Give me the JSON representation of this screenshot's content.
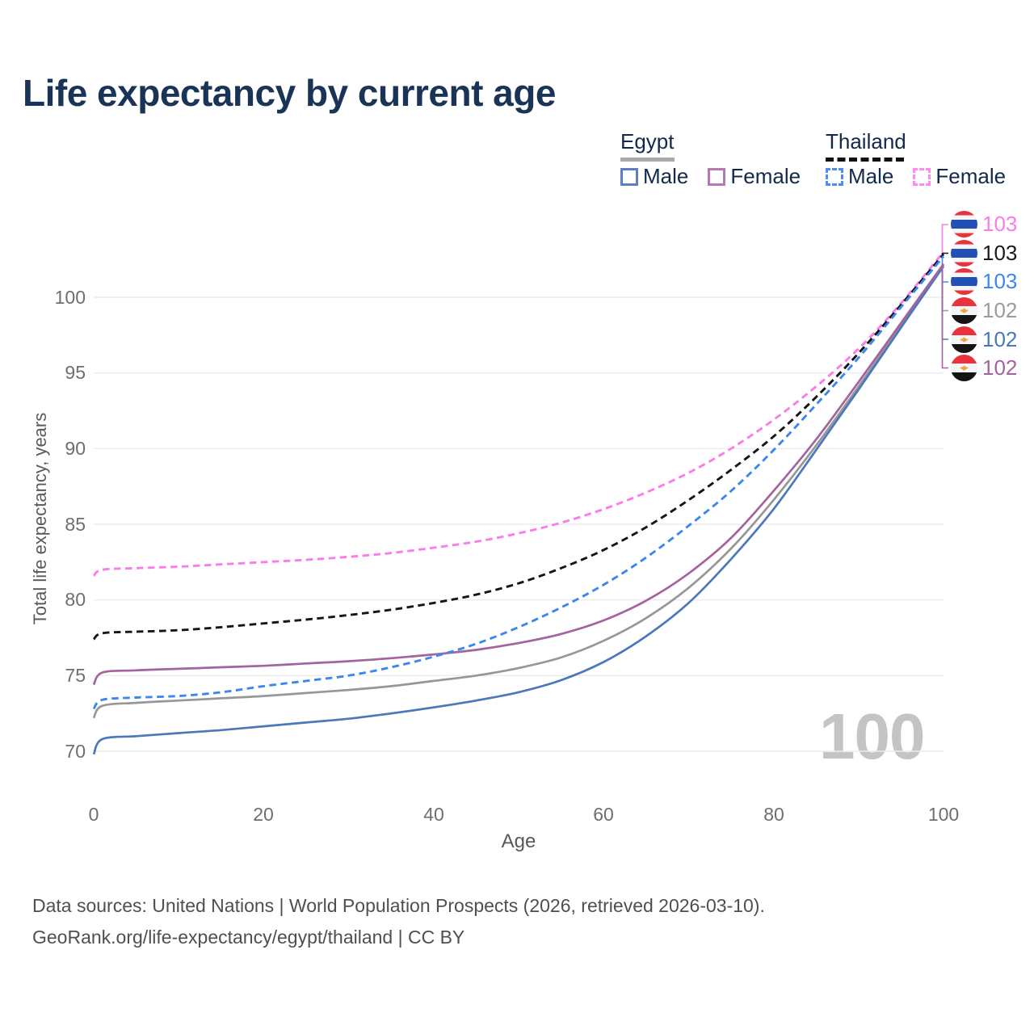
{
  "title": "Life expectancy by current age",
  "legend": {
    "egypt": {
      "label": "Egypt",
      "male": "Male",
      "female": "Female"
    },
    "thailand": {
      "label": "Thailand",
      "male": "Male",
      "female": "Female"
    }
  },
  "axes": {
    "y": {
      "label": "Total life expectancy, years",
      "ticks": [
        "100",
        "95",
        "90",
        "85",
        "80",
        "75",
        "70"
      ],
      "tick_values": [
        100,
        95,
        90,
        85,
        80,
        75,
        70
      ]
    },
    "x": {
      "label": "Age",
      "ticks": [
        "0",
        "20",
        "40",
        "60",
        "80",
        "100"
      ],
      "tick_values": [
        0,
        20,
        40,
        60,
        80,
        100
      ]
    }
  },
  "watermark": "100",
  "end_labels": [
    {
      "value": "103",
      "flag": "thailand",
      "color": "#fb7be9"
    },
    {
      "value": "103",
      "flag": "thailand",
      "color": "#1a1a1a"
    },
    {
      "value": "103",
      "flag": "thailand",
      "color": "#3b87f0"
    },
    {
      "value": "102",
      "flag": "egypt",
      "color": "#9b9b9b"
    },
    {
      "value": "102",
      "flag": "egypt",
      "color": "#4a78ba"
    },
    {
      "value": "102",
      "flag": "egypt",
      "color": "#a4639f"
    }
  ],
  "footer": {
    "line1": "Data sources: United Nations | World Population Prospects (2026, retrieved 2026-03-10).",
    "line2": "GeoRank.org/life-expectancy/egypt/thailand | CC BY"
  },
  "chart_data": {
    "type": "line",
    "title": "Life expectancy by current age",
    "xlabel": "Age",
    "ylabel": "Total life expectancy, years",
    "xlim": [
      0,
      100
    ],
    "ylim": [
      68.5,
      106
    ],
    "grid": "horizontal-only",
    "legend_position": "top-right",
    "x": [
      0,
      1,
      5,
      10,
      15,
      20,
      25,
      30,
      35,
      40,
      45,
      50,
      55,
      60,
      65,
      70,
      75,
      80,
      85,
      90,
      95,
      100
    ],
    "series": [
      {
        "name": "Thailand Female",
        "country": "Thailand",
        "sex": "Female",
        "style": "dashed",
        "color": "#fb7be9",
        "values": [
          81.6,
          82.0,
          82.1,
          82.2,
          82.35,
          82.5,
          82.65,
          82.85,
          83.1,
          83.45,
          83.85,
          84.4,
          85.1,
          86.0,
          87.1,
          88.4,
          90.0,
          91.9,
          94.1,
          96.6,
          99.6,
          103.0
        ]
      },
      {
        "name": "Thailand Both sexes",
        "country": "Thailand",
        "sex": "Both",
        "style": "dashed",
        "color": "#151515",
        "values": [
          77.4,
          77.8,
          77.9,
          78.0,
          78.2,
          78.45,
          78.7,
          79.0,
          79.35,
          79.8,
          80.35,
          81.1,
          82.1,
          83.3,
          84.8,
          86.6,
          88.6,
          90.8,
          93.4,
          96.3,
          99.5,
          102.85
        ]
      },
      {
        "name": "Thailand Male",
        "country": "Thailand",
        "sex": "Male",
        "style": "dashed",
        "color": "#3b87f0",
        "values": [
          72.8,
          73.4,
          73.55,
          73.65,
          73.9,
          74.3,
          74.65,
          75.0,
          75.55,
          76.25,
          77.1,
          78.2,
          79.5,
          81.0,
          82.8,
          84.9,
          87.2,
          89.9,
          92.9,
          96.0,
          99.35,
          102.7
        ]
      },
      {
        "name": "Egypt Both sexes",
        "country": "Egypt",
        "sex": "Both",
        "style": "solid",
        "color": "#979797",
        "values": [
          72.2,
          73.0,
          73.2,
          73.35,
          73.5,
          73.65,
          73.85,
          74.05,
          74.3,
          74.65,
          75.0,
          75.5,
          76.2,
          77.3,
          78.8,
          80.8,
          83.4,
          86.6,
          90.2,
          94.1,
          98.1,
          102.15
        ]
      },
      {
        "name": "Egypt Male",
        "country": "Egypt",
        "sex": "Male",
        "style": "solid",
        "color": "#4a78ba",
        "values": [
          69.8,
          70.8,
          71.0,
          71.2,
          71.4,
          71.65,
          71.9,
          72.15,
          72.5,
          72.9,
          73.35,
          73.9,
          74.7,
          75.9,
          77.6,
          79.8,
          82.7,
          86.0,
          89.9,
          93.9,
          98.0,
          102.05
        ]
      },
      {
        "name": "Egypt Female",
        "country": "Egypt",
        "sex": "Female",
        "style": "solid",
        "color": "#a4639f",
        "values": [
          74.4,
          75.2,
          75.35,
          75.45,
          75.55,
          75.65,
          75.8,
          75.95,
          76.15,
          76.4,
          76.7,
          77.15,
          77.75,
          78.65,
          79.95,
          81.75,
          84.1,
          87.2,
          90.6,
          94.4,
          98.3,
          102.2
        ]
      }
    ]
  }
}
